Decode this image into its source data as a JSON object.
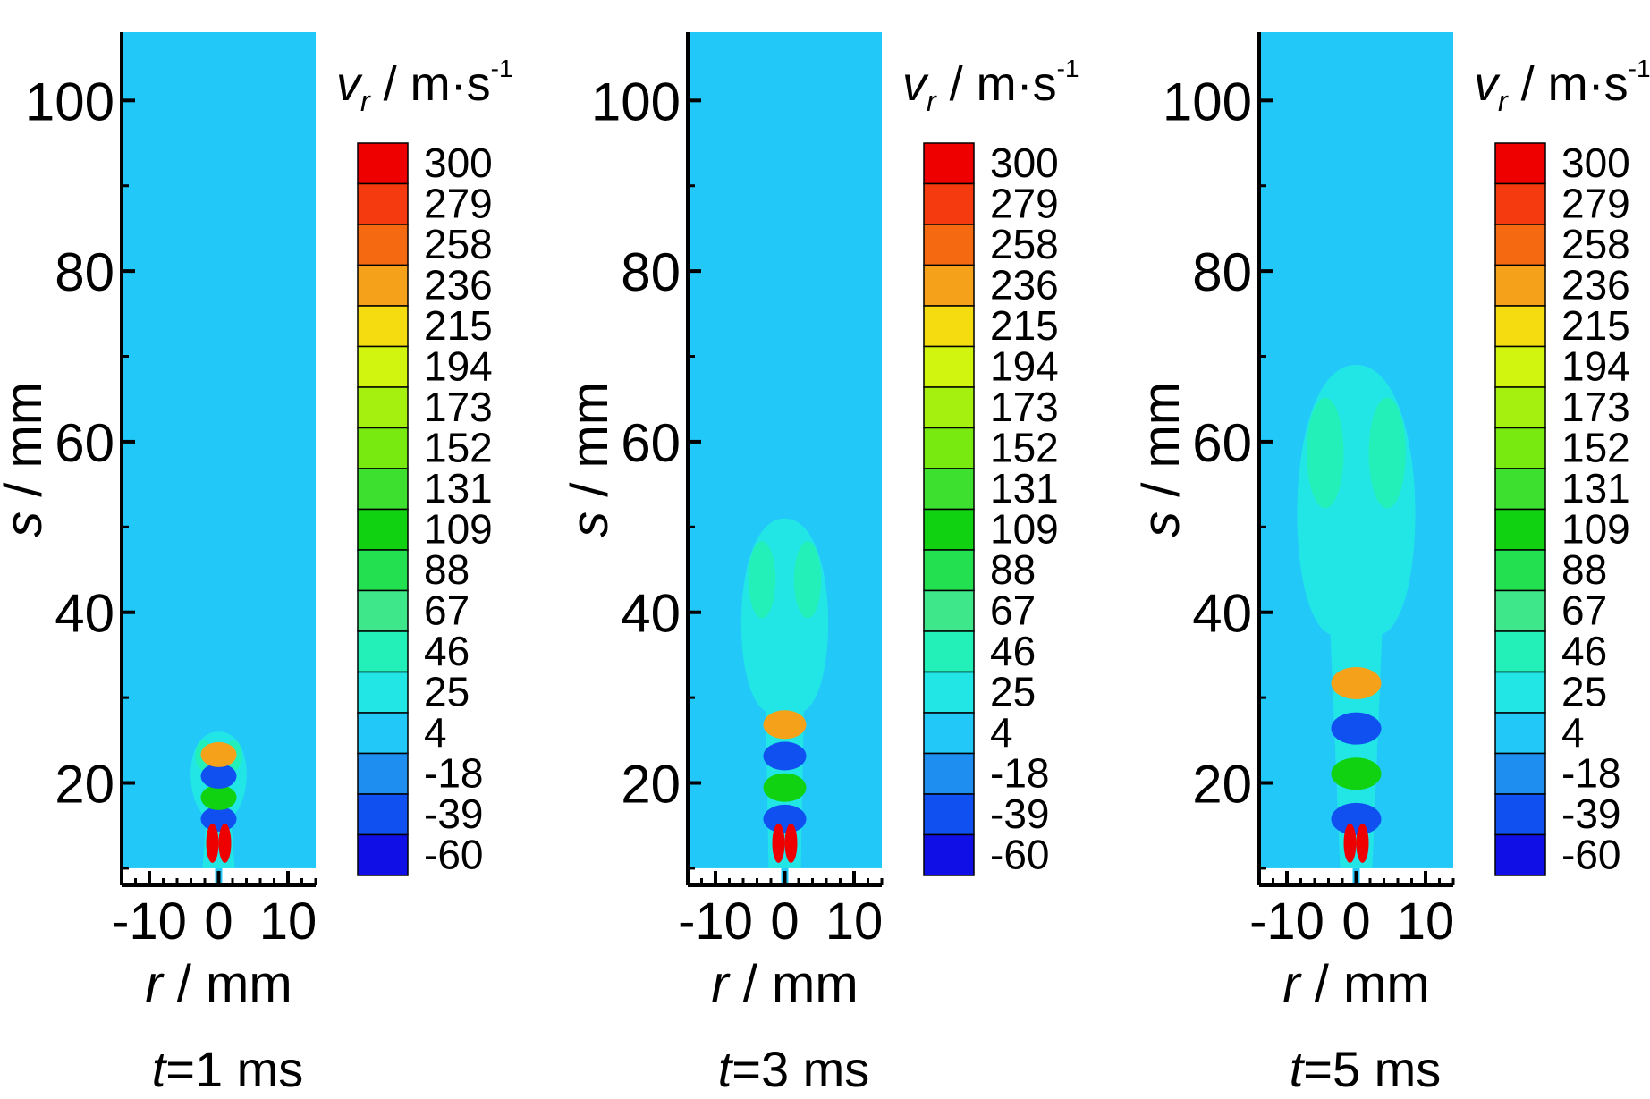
{
  "colorbar": {
    "title_var": "v",
    "title_sub": "r",
    "title_unit": " / m·s",
    "title_exp": "-1",
    "levels": [
      "300",
      "279",
      "258",
      "236",
      "215",
      "194",
      "173",
      "152",
      "131",
      "109",
      "88",
      "67",
      "46",
      "25",
      "4",
      "-18",
      "-39",
      "-60"
    ],
    "colors": [
      "#ee0000",
      "#f53a10",
      "#f56a10",
      "#f5a21a",
      "#f5dc10",
      "#d2f510",
      "#a6f010",
      "#78ea10",
      "#3ee030",
      "#10d210",
      "#22e050",
      "#3ee88a",
      "#22f0b8",
      "#22e6e6",
      "#22c8f8",
      "#1e8ef0",
      "#1050f0",
      "#1010e6"
    ]
  },
  "chart_data": [
    {
      "type": "heatmap",
      "title": "t=1 ms",
      "xlabel": "r / mm",
      "ylabel": "s / mm",
      "xlim": [
        -14,
        14
      ],
      "ylim": [
        8,
        108
      ],
      "xticks": [
        "-10",
        "0",
        "10"
      ],
      "yticks": [
        "20",
        "40",
        "60",
        "80",
        "100"
      ],
      "background_level": "4",
      "colorbar_range": [
        -60,
        300
      ],
      "jet_tip_s": 26
    },
    {
      "type": "heatmap",
      "title": "t=3 ms",
      "xlabel": "r / mm",
      "ylabel": "s / mm",
      "xlim": [
        -14,
        14
      ],
      "ylim": [
        8,
        108
      ],
      "xticks": [
        "-10",
        "0",
        "10"
      ],
      "yticks": [
        "20",
        "40",
        "60",
        "80",
        "100"
      ],
      "background_level": "4",
      "colorbar_range": [
        -60,
        300
      ],
      "jet_tip_s": 51
    },
    {
      "type": "heatmap",
      "title": "t=5 ms",
      "xlabel": "r / mm",
      "ylabel": "s / mm",
      "xlim": [
        -14,
        14
      ],
      "ylim": [
        8,
        108
      ],
      "xticks": [
        "-10",
        "0",
        "10"
      ],
      "yticks": [
        "20",
        "40",
        "60",
        "80",
        "100"
      ],
      "background_level": "4",
      "colorbar_range": [
        -60,
        300
      ],
      "jet_tip_s": 69
    }
  ]
}
